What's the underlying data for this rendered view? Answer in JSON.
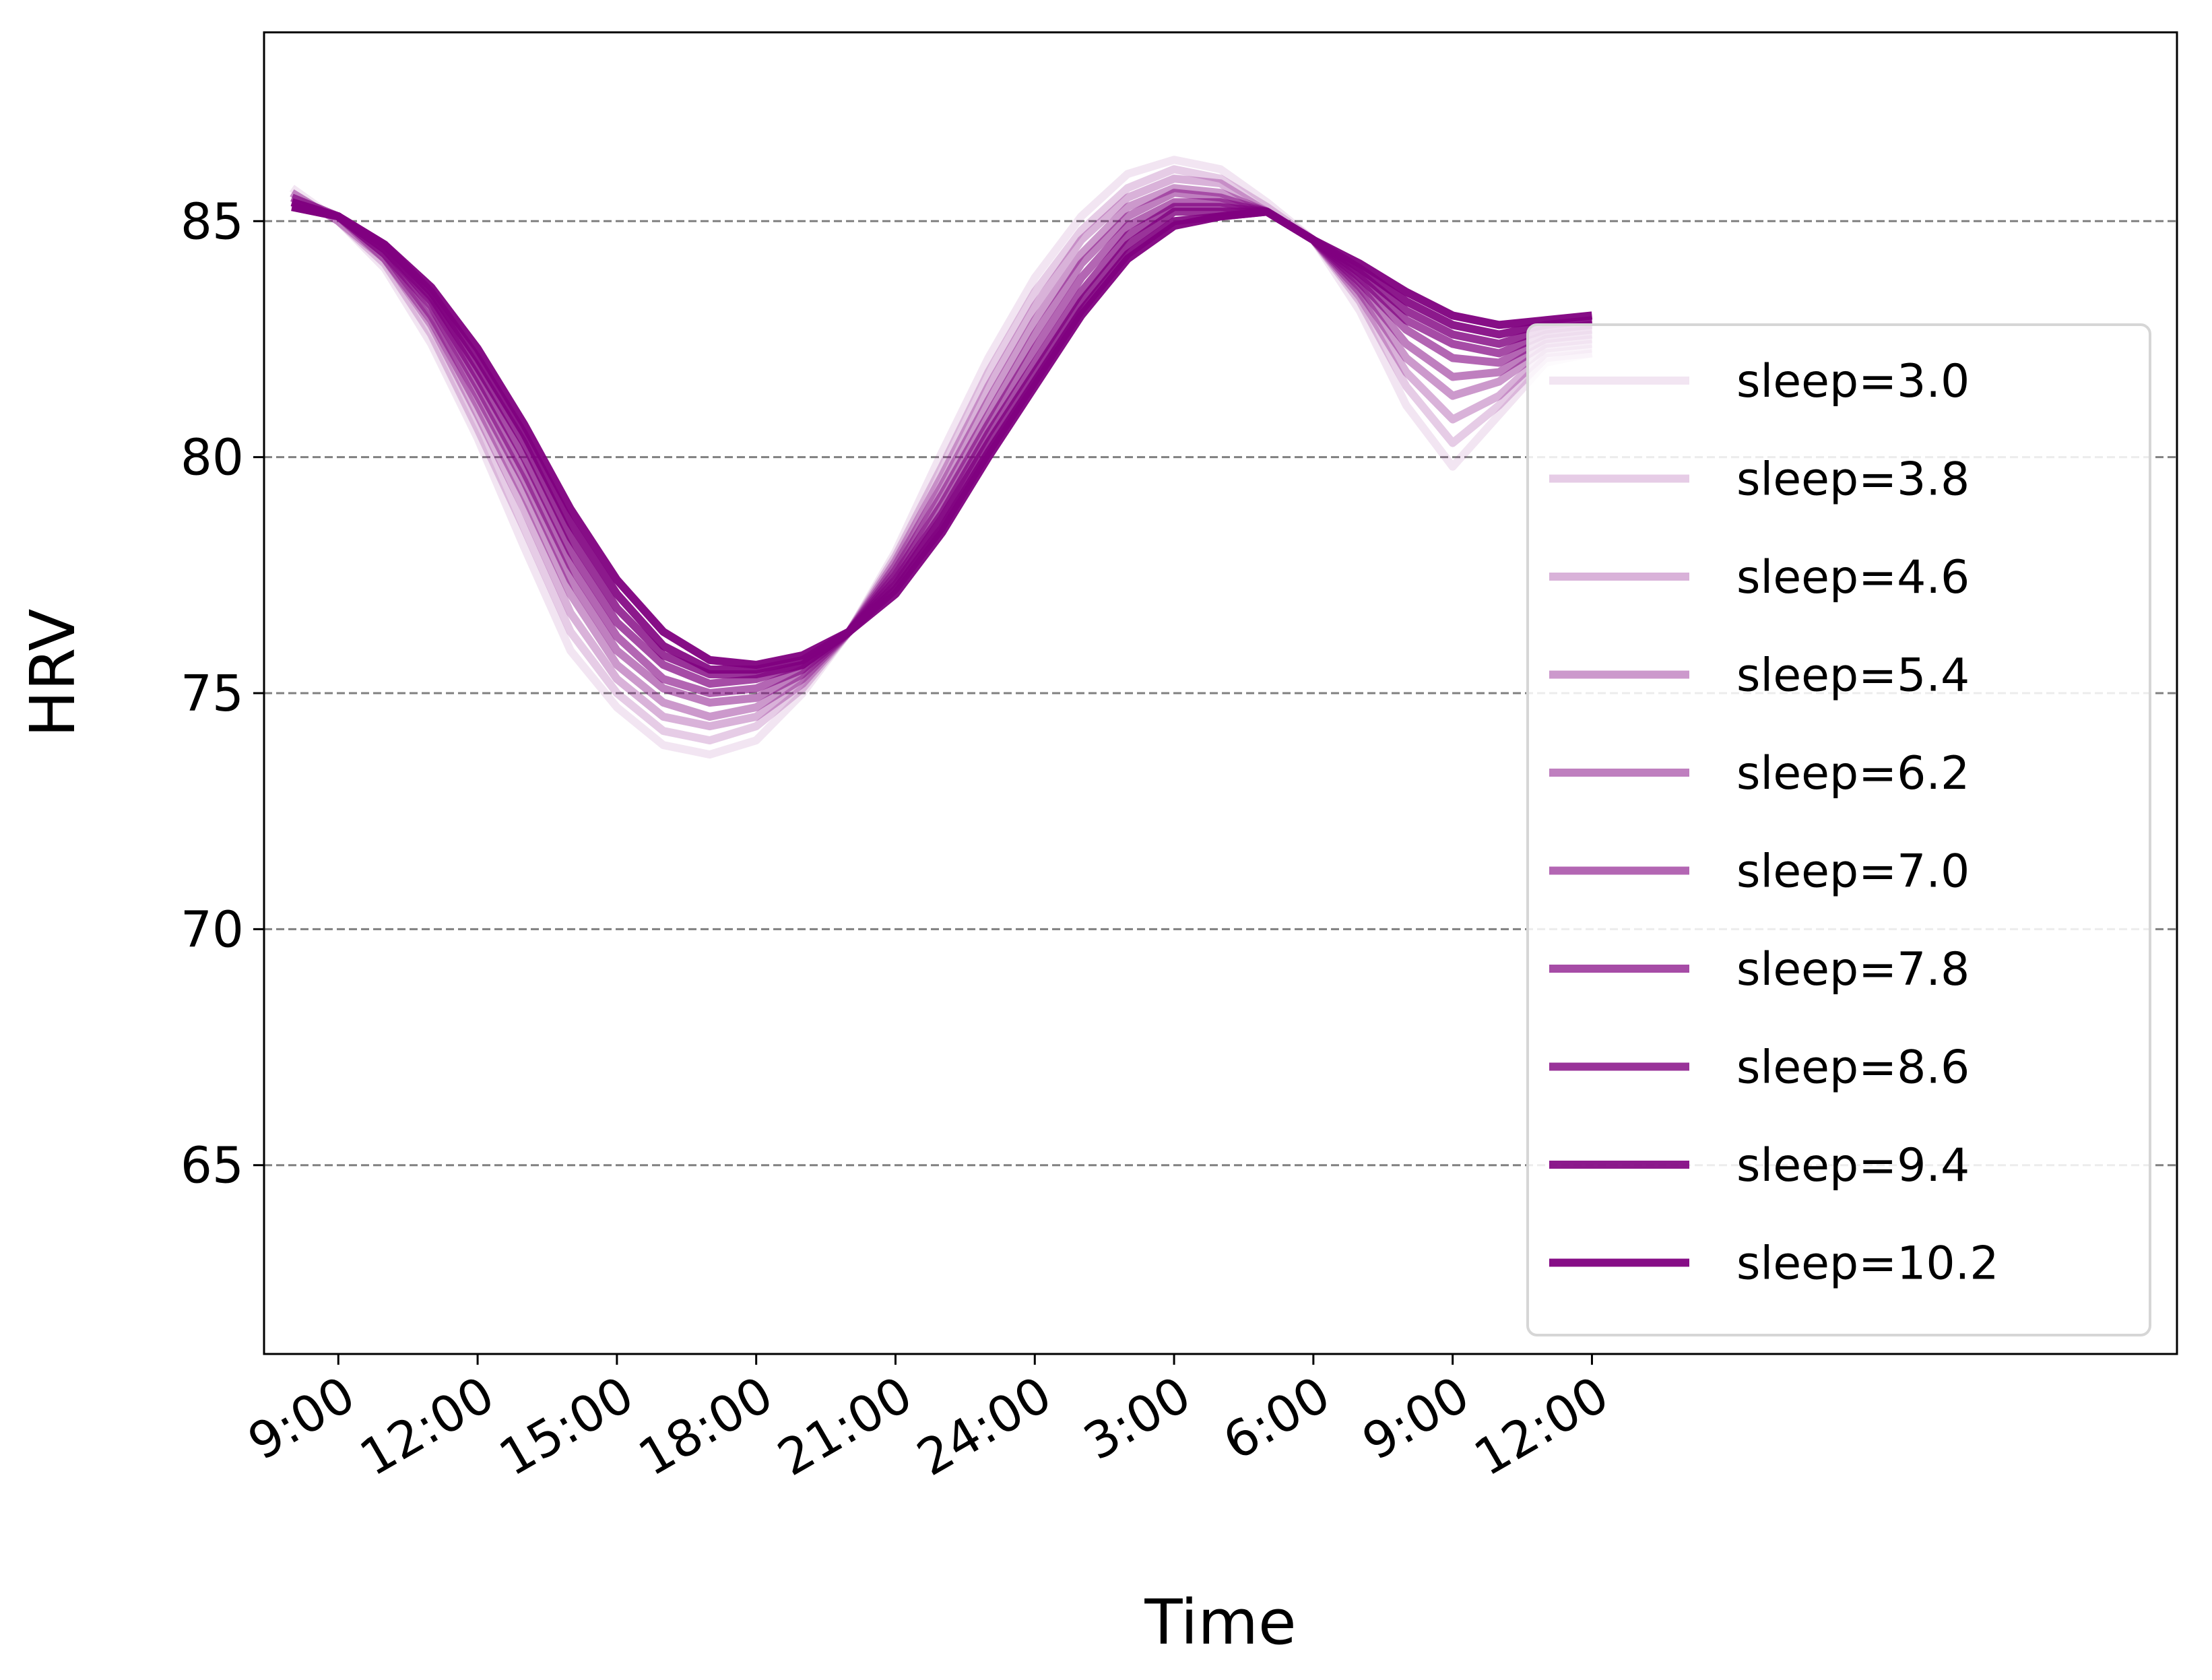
{
  "chart_data": {
    "type": "line",
    "title": "",
    "xlabel": "Time",
    "ylabel": "HRV",
    "x_unit": "hours since 9:00",
    "xlim": [
      -1.6,
      39.6
    ],
    "ylim": [
      61,
      89
    ],
    "yticks": [
      65,
      70,
      75,
      80,
      85
    ],
    "xticks": [
      {
        "value": 0,
        "label": "9:00"
      },
      {
        "value": 3,
        "label": "12:00"
      },
      {
        "value": 6,
        "label": "15:00"
      },
      {
        "value": 9,
        "label": "18:00"
      },
      {
        "value": 12,
        "label": "21:00"
      },
      {
        "value": 15,
        "label": "24:00"
      },
      {
        "value": 18,
        "label": "3:00"
      },
      {
        "value": 21,
        "label": "6:00"
      },
      {
        "value": 24,
        "label": "9:00"
      },
      {
        "value": 27,
        "label": "12:00"
      }
    ],
    "grid": "horizontal-dashed",
    "legend_position": "right",
    "line_color": "#800080",
    "x": [
      -1,
      0,
      1,
      2,
      3,
      4,
      5,
      6,
      7,
      8,
      9,
      10,
      11,
      12,
      13,
      14,
      15,
      16,
      17,
      18,
      19,
      20,
      21,
      22,
      23,
      24,
      25,
      26,
      27
    ],
    "series": [
      {
        "name": "sleep=3.0",
        "opacity": 0.1,
        "values": [
          85.7,
          85.0,
          84.0,
          82.4,
          80.4,
          78.1,
          75.9,
          74.7,
          73.9,
          73.7,
          74.0,
          75.0,
          76.3,
          78.0,
          80.1,
          82.1,
          83.8,
          85.1,
          86.0,
          86.3,
          86.1,
          85.4,
          84.6,
          83.1,
          81.1,
          79.8,
          80.9,
          82.0,
          82.2
        ]
      },
      {
        "name": "sleep=3.8",
        "opacity": 0.2,
        "values": [
          85.6,
          85.0,
          84.1,
          82.6,
          80.6,
          78.5,
          76.3,
          75.0,
          74.2,
          74.0,
          74.3,
          75.1,
          76.3,
          77.9,
          79.8,
          81.8,
          83.5,
          84.8,
          85.7,
          86.1,
          85.9,
          85.3,
          84.6,
          83.3,
          81.5,
          80.3,
          81.1,
          82.1,
          82.2
        ]
      },
      {
        "name": "sleep=4.6",
        "opacity": 0.3,
        "values": [
          85.6,
          85.0,
          84.2,
          82.8,
          80.9,
          78.9,
          76.7,
          75.3,
          74.5,
          74.3,
          74.5,
          75.2,
          76.3,
          77.8,
          79.6,
          81.5,
          83.2,
          84.6,
          85.5,
          85.9,
          85.8,
          85.2,
          84.6,
          83.4,
          81.8,
          80.8,
          81.3,
          82.2,
          82.3
        ]
      },
      {
        "name": "sleep=5.4",
        "opacity": 0.4,
        "values": [
          85.5,
          85.1,
          84.2,
          82.9,
          81.1,
          79.2,
          77.1,
          75.6,
          74.8,
          74.5,
          74.7,
          75.3,
          76.3,
          77.7,
          79.4,
          81.2,
          82.9,
          84.3,
          85.3,
          85.7,
          85.6,
          85.2,
          84.6,
          83.5,
          82.1,
          81.3,
          81.6,
          82.3,
          82.4
        ]
      },
      {
        "name": "sleep=6.2",
        "opacity": 0.5,
        "values": [
          85.5,
          85.1,
          84.3,
          83.0,
          81.3,
          79.5,
          77.4,
          75.9,
          75.1,
          74.8,
          74.9,
          75.4,
          76.3,
          77.6,
          79.2,
          80.9,
          82.6,
          84.1,
          85.1,
          85.6,
          85.5,
          85.2,
          84.6,
          83.6,
          82.4,
          81.7,
          81.8,
          82.4,
          82.5
        ]
      },
      {
        "name": "sleep=7.0",
        "opacity": 0.6,
        "values": [
          85.4,
          85.1,
          84.3,
          83.2,
          81.5,
          79.7,
          77.7,
          76.2,
          75.3,
          75.0,
          75.1,
          75.5,
          76.3,
          77.5,
          79.0,
          80.7,
          82.3,
          83.8,
          84.9,
          85.4,
          85.4,
          85.2,
          84.6,
          83.7,
          82.7,
          82.1,
          82.0,
          82.5,
          82.6
        ]
      },
      {
        "name": "sleep=7.8",
        "opacity": 0.7,
        "values": [
          85.4,
          85.1,
          84.4,
          83.3,
          81.7,
          80.0,
          78.0,
          76.5,
          75.6,
          75.2,
          75.3,
          75.6,
          76.3,
          77.4,
          78.8,
          80.5,
          82.0,
          83.5,
          84.7,
          85.3,
          85.3,
          85.2,
          84.6,
          83.8,
          82.9,
          82.4,
          82.2,
          82.6,
          82.7
        ]
      },
      {
        "name": "sleep=8.6",
        "opacity": 0.8,
        "values": [
          85.4,
          85.1,
          84.4,
          83.4,
          81.9,
          80.3,
          78.3,
          76.8,
          75.8,
          75.4,
          75.4,
          75.6,
          76.3,
          77.3,
          78.7,
          80.3,
          81.8,
          83.3,
          84.5,
          85.2,
          85.2,
          85.2,
          84.6,
          83.9,
          83.1,
          82.6,
          82.4,
          82.7,
          82.8
        ]
      },
      {
        "name": "sleep=9.4",
        "opacity": 0.9,
        "values": [
          85.3,
          85.1,
          84.5,
          83.5,
          82.1,
          80.5,
          78.6,
          77.1,
          76.0,
          75.5,
          75.5,
          75.7,
          76.3,
          77.2,
          78.5,
          80.1,
          81.6,
          83.1,
          84.3,
          85.0,
          85.1,
          85.2,
          84.6,
          84.0,
          83.3,
          82.8,
          82.6,
          82.8,
          82.9
        ]
      },
      {
        "name": "sleep=10.2",
        "opacity": 0.95,
        "values": [
          85.3,
          85.1,
          84.5,
          83.6,
          82.3,
          80.7,
          78.9,
          77.4,
          76.3,
          75.7,
          75.6,
          75.8,
          76.3,
          77.1,
          78.4,
          80.0,
          81.5,
          83.0,
          84.2,
          84.9,
          85.1,
          85.2,
          84.6,
          84.1,
          83.5,
          83.0,
          82.8,
          82.9,
          83.0
        ]
      }
    ]
  }
}
